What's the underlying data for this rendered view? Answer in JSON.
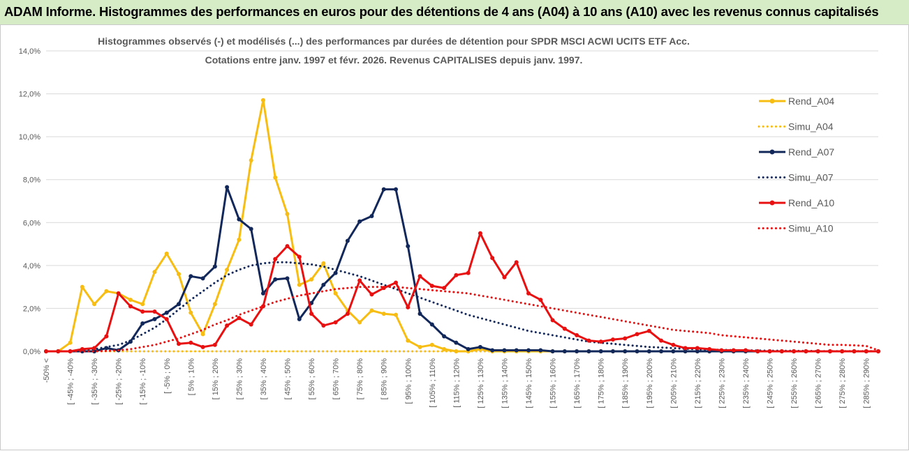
{
  "banner": {
    "title": "ADAM Informe. Histogrammes des performances en euros pour des détentions de 4 ans (A04) à 10 ans (A10) avec les revenus connus capitalisés"
  },
  "colors": {
    "banner_bg": "#d6ecc6",
    "A04": "#f7bd12",
    "A07": "#12285a",
    "A10": "#e81010",
    "grid": "#d9d9d9",
    "text": "#595959"
  },
  "chart_data": {
    "type": "line",
    "title_lines": [
      "Histogrammes observés (-) et modélisés (...) des performances par durées de détention pour SPDR MSCI ACWI UCITS ETF Acc.",
      "Cotations entre janv. 1997 et févr. 2026. Revenus CAPITALISES depuis janv. 1997."
    ],
    "y_ticks": [
      "0,0%",
      "2,0%",
      "4,0%",
      "6,0%",
      "8,0%",
      "10,0%",
      "12,0%",
      "14,0%"
    ],
    "ylim": [
      0,
      14
    ],
    "y_unit": "%",
    "grid": "horizontal",
    "legend_position": "right",
    "x_labels": [
      "-50% <",
      "[ -45% ; -40%",
      "[ -35% ; -30%",
      "[ -25% ; -20%",
      "[ -15% ; -10%",
      "[ -5% ; 0%",
      "[ 5% ; 10%",
      "[ 15% ; 20%",
      "[ 25% ; 30%",
      "[ 35% ; 40%",
      "[ 45% ; 50%",
      "[ 55% ; 60%",
      "[ 65% ; 70%",
      "[ 75% ; 80%",
      "[ 85% ; 90%",
      "[ 95% ; 100%",
      "[ 105% ; 110%",
      "[ 115% ; 120%",
      "[ 125% ; 130%",
      "[ 135% ; 140%",
      "[ 145% ; 150%",
      "[ 155% ; 160%",
      "[ 165% ; 170%",
      "[ 175% ; 180%",
      "[ 185% ; 190%",
      "[ 195% ; 200%",
      "[ 205% ; 210%",
      "[ 215% ; 220%",
      "[ 225% ; 230%",
      "[ 235% ; 240%",
      "[ 245% ; 250%",
      "[ 255% ; 260%",
      "[ 265% ; 270%",
      "[ 275% ; 280%",
      "[ 285% ; 290%"
    ],
    "x_label_every": 2,
    "series": [
      {
        "name": "Rend_A04",
        "style": "solid",
        "color": "#f7bd12",
        "values": [
          0,
          0,
          0.4,
          3.0,
          2.2,
          2.8,
          2.7,
          2.4,
          2.2,
          3.7,
          4.55,
          3.6,
          1.8,
          0.8,
          2.2,
          3.8,
          5.2,
          8.9,
          11.7,
          8.1,
          6.4,
          3.1,
          3.35,
          4.1,
          2.7,
          1.9,
          1.35,
          1.9,
          1.75,
          1.7,
          0.5,
          0.2,
          0.3,
          0.1,
          0,
          0,
          0.1,
          0,
          0,
          0,
          0,
          0,
          0,
          0,
          0,
          0,
          0,
          0,
          0,
          0,
          0,
          0,
          0,
          0,
          0,
          0,
          0,
          0,
          0,
          0,
          0,
          0,
          0,
          0,
          0,
          0,
          0,
          0,
          0,
          0
        ]
      },
      {
        "name": "Simu_A04",
        "style": "dotted",
        "color": "#f7bd12",
        "values": [
          0,
          0,
          0,
          0,
          0,
          0,
          0,
          0,
          0,
          0,
          0,
          0,
          0,
          0,
          0,
          0,
          0,
          0,
          0,
          0,
          0,
          0,
          0,
          0,
          0,
          0,
          0,
          0,
          0,
          0,
          0,
          0,
          0,
          0,
          0,
          0,
          0,
          0,
          0,
          0,
          0,
          0,
          0,
          0,
          0,
          0,
          0,
          0,
          0,
          0,
          0,
          0,
          0,
          0,
          0,
          0,
          0,
          0,
          0,
          0,
          0,
          0,
          0,
          0,
          0,
          0,
          0,
          0,
          0,
          0
        ]
      },
      {
        "name": "Rend_A07",
        "style": "solid",
        "color": "#12285a",
        "values": [
          0,
          0,
          0,
          0,
          0,
          0.15,
          0.05,
          0.45,
          1.3,
          1.5,
          1.8,
          2.2,
          3.5,
          3.4,
          3.95,
          7.65,
          6.15,
          5.7,
          2.7,
          3.35,
          3.4,
          1.5,
          2.25,
          3.1,
          3.65,
          5.15,
          6.05,
          6.3,
          7.55,
          7.55,
          4.9,
          1.75,
          1.25,
          0.7,
          0.4,
          0.1,
          0.2,
          0.05,
          0.05,
          0.05,
          0.05,
          0.05,
          0,
          0,
          0,
          0,
          0,
          0,
          0,
          0,
          0,
          0,
          0,
          0,
          0,
          0,
          0,
          0,
          0,
          0,
          0,
          0,
          0,
          0,
          0,
          0,
          0,
          0,
          0,
          0
        ]
      },
      {
        "name": "Simu_A07",
        "style": "dotted",
        "color": "#12285a",
        "values": [
          0,
          0,
          0,
          0.05,
          0.1,
          0.2,
          0.3,
          0.5,
          0.8,
          1.1,
          1.5,
          1.95,
          2.4,
          2.8,
          3.2,
          3.55,
          3.8,
          4.0,
          4.1,
          4.15,
          4.15,
          4.1,
          4.05,
          3.95,
          3.8,
          3.65,
          3.5,
          3.3,
          3.1,
          2.9,
          2.7,
          2.5,
          2.3,
          2.1,
          1.9,
          1.7,
          1.55,
          1.4,
          1.25,
          1.1,
          0.95,
          0.85,
          0.75,
          0.65,
          0.55,
          0.45,
          0.4,
          0.35,
          0.3,
          0.25,
          0.2,
          0.18,
          0.15,
          0.12,
          0.1,
          0.08,
          0.07,
          0.06,
          0.05,
          0.04,
          0.03,
          0.03,
          0.02,
          0.02,
          0.01,
          0.01,
          0.01,
          0.01,
          0.01,
          0.01
        ]
      },
      {
        "name": "Rend_A10",
        "style": "solid",
        "color": "#e81010",
        "values": [
          0,
          0,
          0,
          0.1,
          0.15,
          0.7,
          2.7,
          2.1,
          1.85,
          1.85,
          1.5,
          0.35,
          0.4,
          0.2,
          0.3,
          1.2,
          1.55,
          1.25,
          2.1,
          4.3,
          4.9,
          4.4,
          1.75,
          1.2,
          1.35,
          1.75,
          3.3,
          2.65,
          2.95,
          3.2,
          2.05,
          3.5,
          3.05,
          2.95,
          3.55,
          3.65,
          5.5,
          4.35,
          3.45,
          4.15,
          2.7,
          2.4,
          1.45,
          1.05,
          0.75,
          0.5,
          0.45,
          0.55,
          0.6,
          0.8,
          0.95,
          0.5,
          0.3,
          0.15,
          0.15,
          0.1,
          0.05,
          0.05,
          0.05,
          0,
          0,
          0,
          0,
          0,
          0,
          0,
          0,
          0,
          0,
          0
        ]
      },
      {
        "name": "Simu_A10",
        "style": "dotted",
        "color": "#e81010",
        "values": [
          0,
          0,
          0,
          0,
          0,
          0.02,
          0.05,
          0.1,
          0.2,
          0.3,
          0.45,
          0.6,
          0.8,
          1.0,
          1.25,
          1.45,
          1.7,
          1.9,
          2.1,
          2.3,
          2.45,
          2.6,
          2.7,
          2.8,
          2.9,
          2.95,
          3.0,
          3.0,
          3.0,
          3.0,
          2.95,
          2.9,
          2.85,
          2.8,
          2.75,
          2.7,
          2.6,
          2.5,
          2.4,
          2.3,
          2.2,
          2.1,
          2.0,
          1.9,
          1.8,
          1.7,
          1.6,
          1.5,
          1.4,
          1.3,
          1.2,
          1.1,
          1.0,
          0.95,
          0.9,
          0.85,
          0.75,
          0.7,
          0.65,
          0.6,
          0.55,
          0.5,
          0.45,
          0.4,
          0.35,
          0.3,
          0.3,
          0.28,
          0.25,
          0.05
        ]
      }
    ]
  }
}
